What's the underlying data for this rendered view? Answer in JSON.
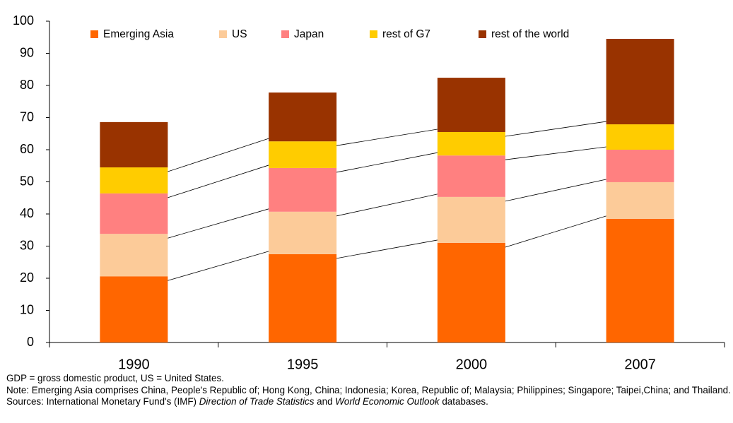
{
  "chart_data": {
    "type": "stacked-bar",
    "categories": [
      "1990",
      "1995",
      "2000",
      "2007"
    ],
    "series": [
      {
        "name": "Emerging Asia",
        "color": "#ff6600",
        "values": [
          20.6,
          27.5,
          31.0,
          38.5
        ]
      },
      {
        "name": "US",
        "color": "#fccb99",
        "values": [
          13.2,
          13.2,
          14.3,
          11.4
        ]
      },
      {
        "name": "Japan",
        "color": "#ff8080",
        "values": [
          12.6,
          13.6,
          12.9,
          10.1
        ]
      },
      {
        "name": "rest of G7",
        "color": "#ffcc00",
        "values": [
          8.1,
          8.3,
          7.3,
          7.9
        ]
      },
      {
        "name": "rest of the world",
        "color": "#993300",
        "values": [
          14.1,
          15.2,
          16.9,
          26.6
        ]
      }
    ],
    "ylim": [
      0,
      100
    ],
    "yticks": [
      0,
      10,
      20,
      30,
      40,
      50,
      60,
      70,
      80,
      90,
      100
    ],
    "connectors": true
  },
  "notes": [
    "GDP = gross domestic product, US = United States.",
    "Note: Emerging Asia comprises China, People's Republic of; Hong Kong, China; Indonesia; Korea, Republic of; Malaysia; Philippines; Singapore; Taipei,China; and Thailand."
  ],
  "sources": [
    {
      "text": "Sources: International Monetary Fund's (IMF) "
    },
    {
      "text": "Direction of Trade Statistics",
      "italic": true
    },
    {
      "text": " and "
    },
    {
      "text": "World Economic Outlook",
      "italic": true
    },
    {
      "text": " databases."
    }
  ]
}
